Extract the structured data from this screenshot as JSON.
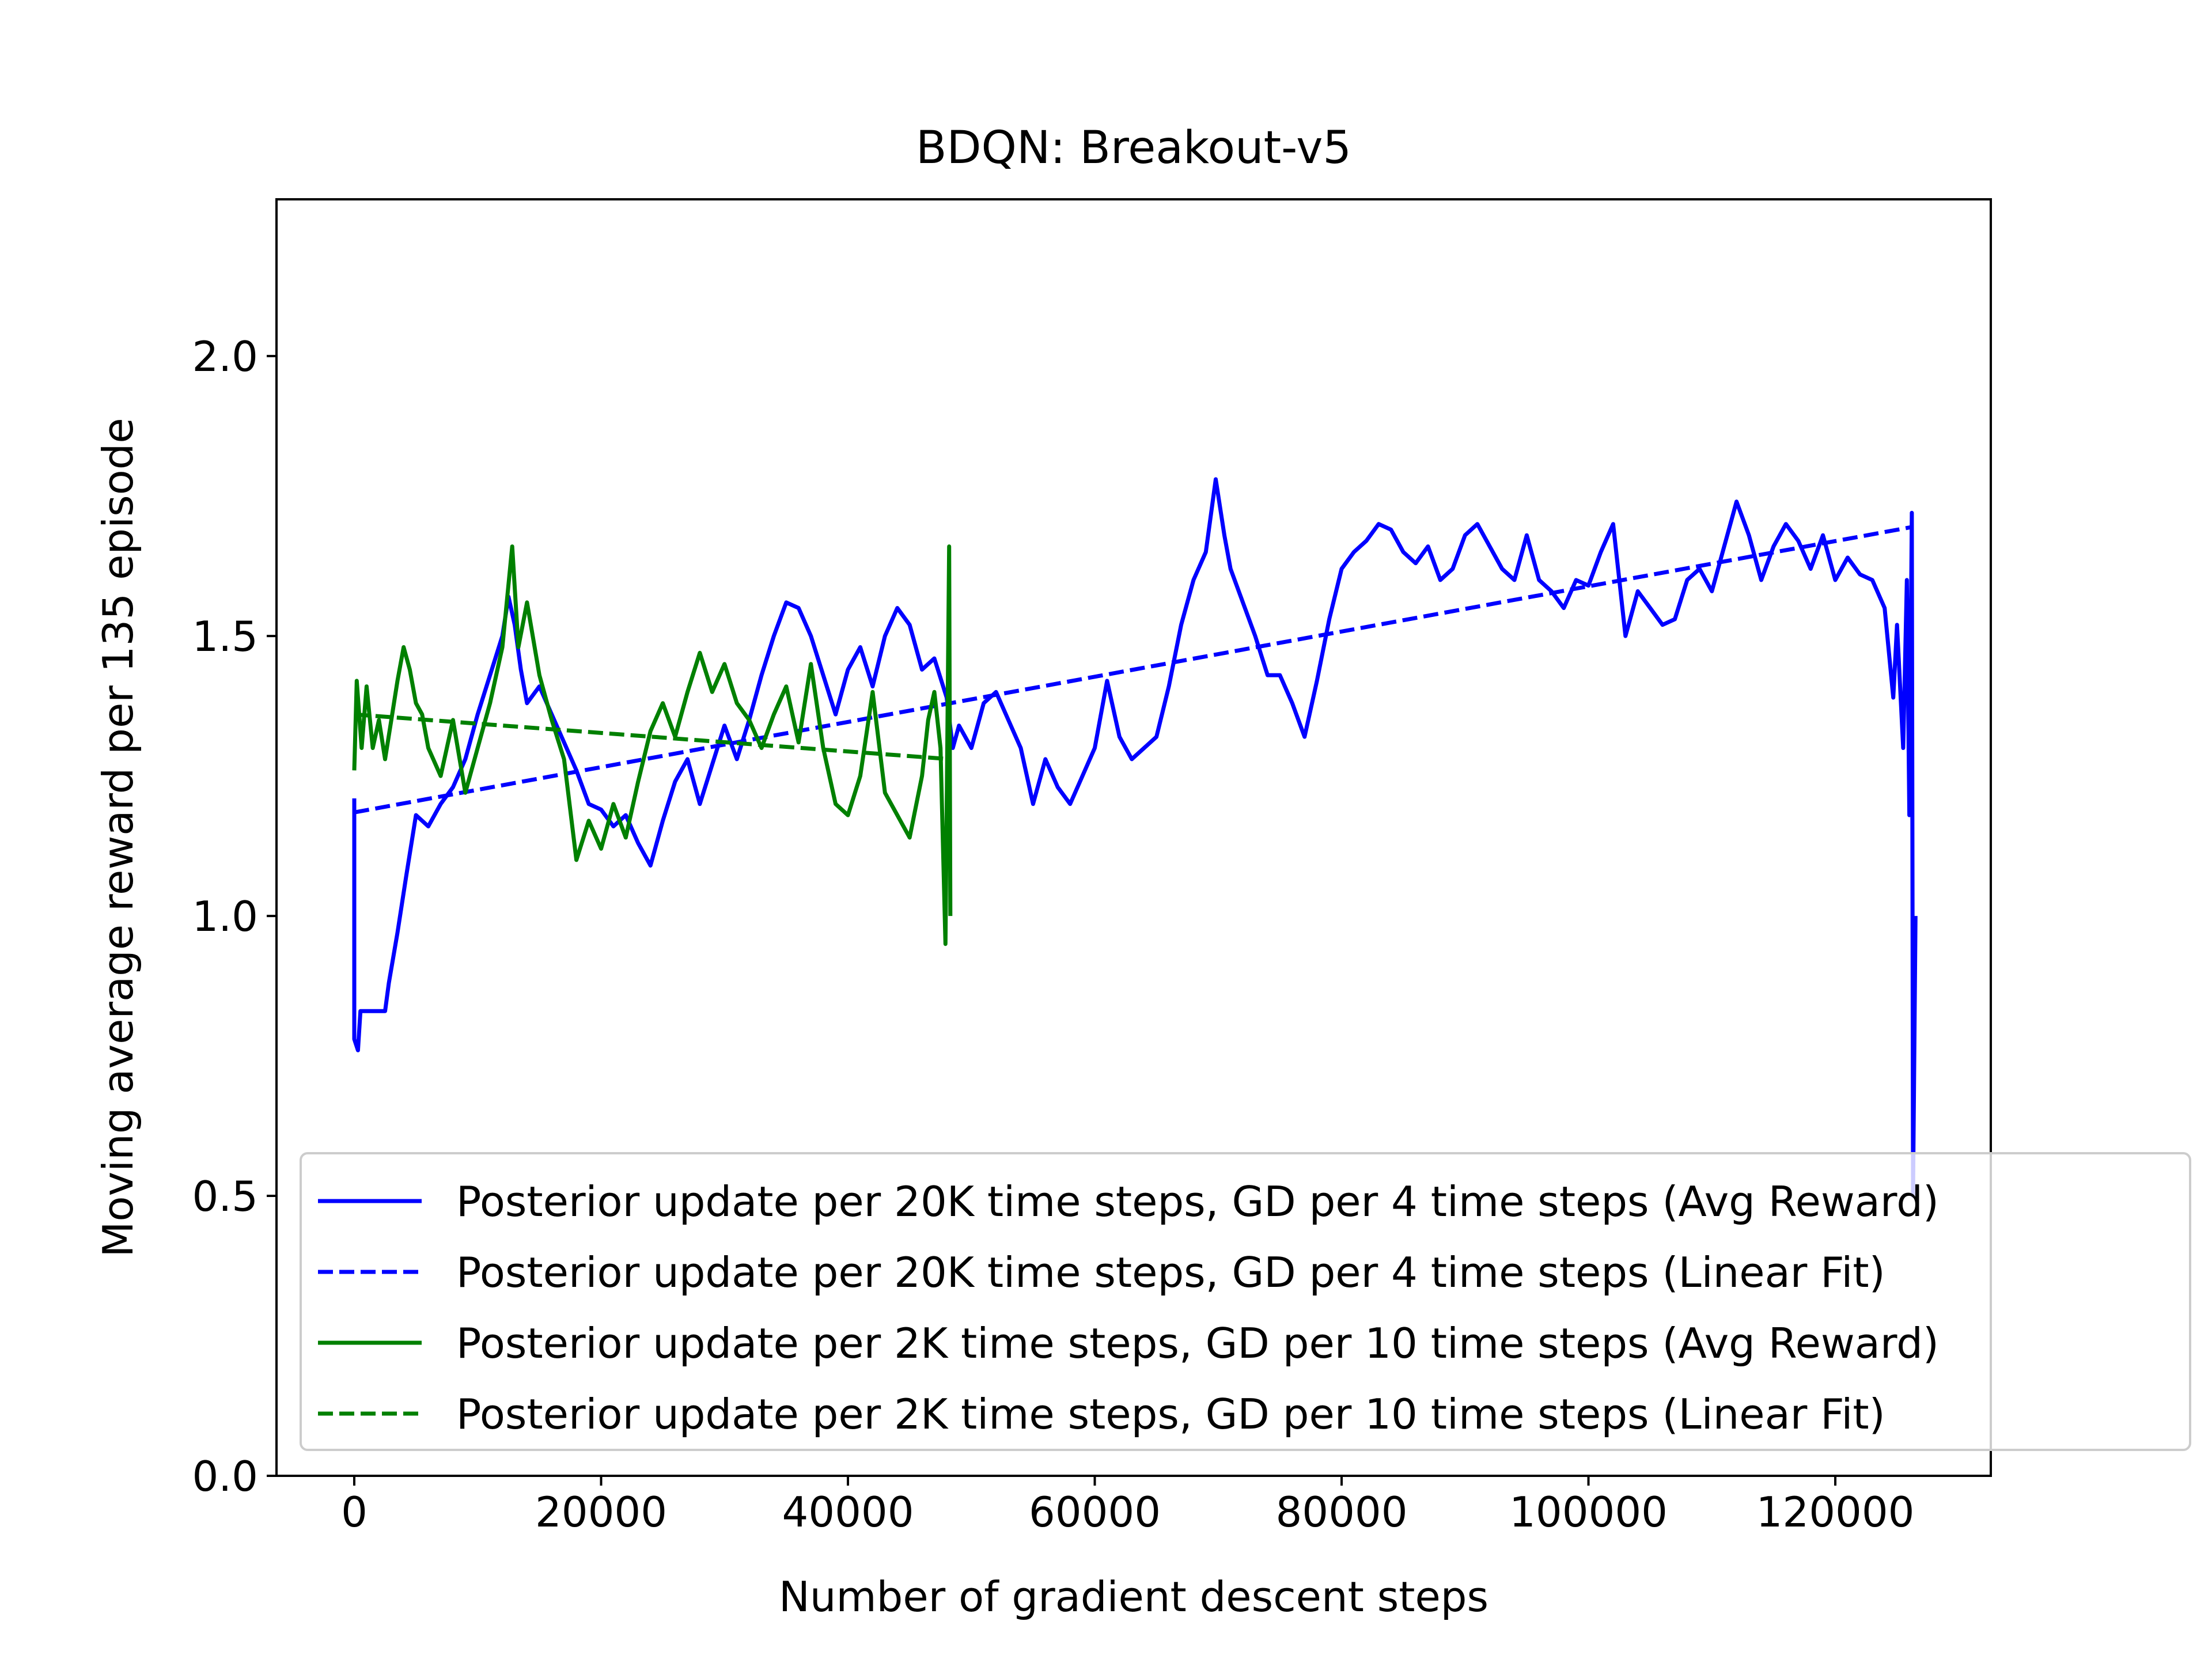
{
  "chart_data": {
    "type": "line",
    "title": "BDQN: Breakout-v5",
    "xlabel": "Number of gradient descent steps",
    "ylabel": "Moving average reward per 135 episode",
    "xlim": [
      -6300,
      132600
    ],
    "ylim": [
      0.0,
      2.28
    ],
    "xticks": [
      0,
      20000,
      40000,
      60000,
      80000,
      100000,
      120000
    ],
    "yticks": [
      0.0,
      0.5,
      1.0,
      1.5,
      2.0
    ],
    "ytick_labels": [
      "0.0",
      "0.5",
      "1.0",
      "1.5",
      "2.0"
    ],
    "grid": false,
    "legend_position": "lower-right",
    "series": [
      {
        "name": "Posterior update per 20K time steps, GD per 4 time steps (Avg Reward)",
        "color": "#0000ff",
        "style": "solid",
        "points": [
          [
            0,
            1.21
          ],
          [
            0,
            0.78
          ],
          [
            300,
            0.76
          ],
          [
            500,
            0.83
          ],
          [
            1500,
            0.83
          ],
          [
            2500,
            0.83
          ],
          [
            2800,
            0.88
          ],
          [
            3500,
            0.97
          ],
          [
            4200,
            1.07
          ],
          [
            5000,
            1.18
          ],
          [
            6000,
            1.16
          ],
          [
            7000,
            1.2
          ],
          [
            8000,
            1.23
          ],
          [
            9000,
            1.28
          ],
          [
            10000,
            1.36
          ],
          [
            11000,
            1.43
          ],
          [
            12000,
            1.5
          ],
          [
            12500,
            1.57
          ],
          [
            13000,
            1.52
          ],
          [
            13500,
            1.44
          ],
          [
            14000,
            1.38
          ],
          [
            15000,
            1.41
          ],
          [
            16000,
            1.36
          ],
          [
            17000,
            1.31
          ],
          [
            18000,
            1.26
          ],
          [
            19000,
            1.2
          ],
          [
            20000,
            1.19
          ],
          [
            21000,
            1.16
          ],
          [
            22000,
            1.18
          ],
          [
            23000,
            1.13
          ],
          [
            24000,
            1.09
          ],
          [
            25000,
            1.17
          ],
          [
            26000,
            1.24
          ],
          [
            27000,
            1.28
          ],
          [
            28000,
            1.2
          ],
          [
            29000,
            1.27
          ],
          [
            30000,
            1.34
          ],
          [
            31000,
            1.28
          ],
          [
            32000,
            1.35
          ],
          [
            33000,
            1.43
          ],
          [
            34000,
            1.5
          ],
          [
            35000,
            1.56
          ],
          [
            36000,
            1.55
          ],
          [
            37000,
            1.5
          ],
          [
            38000,
            1.43
          ],
          [
            39000,
            1.36
          ],
          [
            40000,
            1.44
          ],
          [
            41000,
            1.48
          ],
          [
            42000,
            1.41
          ],
          [
            43000,
            1.5
          ],
          [
            44000,
            1.55
          ],
          [
            45000,
            1.52
          ],
          [
            46000,
            1.44
          ],
          [
            47000,
            1.46
          ],
          [
            48000,
            1.39
          ],
          [
            48500,
            1.3
          ],
          [
            49000,
            1.34
          ],
          [
            50000,
            1.3
          ],
          [
            51000,
            1.38
          ],
          [
            52000,
            1.4
          ],
          [
            53000,
            1.35
          ],
          [
            54000,
            1.3
          ],
          [
            55000,
            1.2
          ],
          [
            56000,
            1.28
          ],
          [
            57000,
            1.23
          ],
          [
            58000,
            1.2
          ],
          [
            59000,
            1.25
          ],
          [
            60000,
            1.3
          ],
          [
            61000,
            1.42
          ],
          [
            62000,
            1.32
          ],
          [
            63000,
            1.28
          ],
          [
            64000,
            1.3
          ],
          [
            65000,
            1.32
          ],
          [
            66000,
            1.41
          ],
          [
            67000,
            1.52
          ],
          [
            68000,
            1.6
          ],
          [
            69000,
            1.65
          ],
          [
            69800,
            1.78
          ],
          [
            70500,
            1.68
          ],
          [
            71000,
            1.62
          ],
          [
            72000,
            1.56
          ],
          [
            73000,
            1.5
          ],
          [
            74000,
            1.43
          ],
          [
            75000,
            1.43
          ],
          [
            76000,
            1.38
          ],
          [
            77000,
            1.32
          ],
          [
            78000,
            1.42
          ],
          [
            79000,
            1.53
          ],
          [
            80000,
            1.62
          ],
          [
            81000,
            1.65
          ],
          [
            82000,
            1.67
          ],
          [
            83000,
            1.7
          ],
          [
            84000,
            1.69
          ],
          [
            85000,
            1.65
          ],
          [
            86000,
            1.63
          ],
          [
            87000,
            1.66
          ],
          [
            88000,
            1.6
          ],
          [
            89000,
            1.62
          ],
          [
            90000,
            1.68
          ],
          [
            91000,
            1.7
          ],
          [
            92000,
            1.66
          ],
          [
            93000,
            1.62
          ],
          [
            94000,
            1.6
          ],
          [
            95000,
            1.68
          ],
          [
            96000,
            1.6
          ],
          [
            97000,
            1.58
          ],
          [
            98000,
            1.55
          ],
          [
            99000,
            1.6
          ],
          [
            100000,
            1.59
          ],
          [
            101000,
            1.65
          ],
          [
            102000,
            1.7
          ],
          [
            103000,
            1.5
          ],
          [
            104000,
            1.58
          ],
          [
            105000,
            1.55
          ],
          [
            106000,
            1.52
          ],
          [
            107000,
            1.53
          ],
          [
            108000,
            1.6
          ],
          [
            109000,
            1.62
          ],
          [
            110000,
            1.58
          ],
          [
            111000,
            1.66
          ],
          [
            112000,
            1.74
          ],
          [
            113000,
            1.68
          ],
          [
            114000,
            1.6
          ],
          [
            115000,
            1.66
          ],
          [
            116000,
            1.7
          ],
          [
            117000,
            1.67
          ],
          [
            118000,
            1.62
          ],
          [
            119000,
            1.68
          ],
          [
            120000,
            1.6
          ],
          [
            121000,
            1.64
          ],
          [
            122000,
            1.61
          ],
          [
            123000,
            1.6
          ],
          [
            124000,
            1.55
          ],
          [
            124700,
            1.39
          ],
          [
            125000,
            1.52
          ],
          [
            125500,
            1.3
          ],
          [
            125800,
            1.6
          ],
          [
            126000,
            1.18
          ],
          [
            126200,
            1.72
          ],
          [
            126300,
            0.5
          ],
          [
            126500,
            1.0
          ]
        ]
      },
      {
        "name": "Posterior update per 20K time steps, GD per 4 time steps (Linear Fit)",
        "color": "#0000ff",
        "style": "dashed",
        "points": [
          [
            0,
            1.185
          ],
          [
            126300,
            1.695
          ]
        ]
      },
      {
        "name": "Posterior update per 2K time steps, GD per 10 time steps (Avg Reward)",
        "color": "#008000",
        "style": "solid",
        "points": [
          [
            0,
            1.26
          ],
          [
            200,
            1.42
          ],
          [
            600,
            1.3
          ],
          [
            1000,
            1.41
          ],
          [
            1500,
            1.3
          ],
          [
            2000,
            1.35
          ],
          [
            2500,
            1.28
          ],
          [
            3000,
            1.35
          ],
          [
            3500,
            1.42
          ],
          [
            4000,
            1.48
          ],
          [
            4500,
            1.44
          ],
          [
            5000,
            1.38
          ],
          [
            5500,
            1.36
          ],
          [
            6000,
            1.3
          ],
          [
            7000,
            1.25
          ],
          [
            8000,
            1.35
          ],
          [
            9000,
            1.22
          ],
          [
            10000,
            1.3
          ],
          [
            11000,
            1.38
          ],
          [
            12000,
            1.48
          ],
          [
            12800,
            1.66
          ],
          [
            13300,
            1.48
          ],
          [
            14000,
            1.56
          ],
          [
            15000,
            1.43
          ],
          [
            16000,
            1.35
          ],
          [
            17000,
            1.28
          ],
          [
            18000,
            1.1
          ],
          [
            19000,
            1.17
          ],
          [
            20000,
            1.12
          ],
          [
            21000,
            1.2
          ],
          [
            22000,
            1.14
          ],
          [
            23000,
            1.24
          ],
          [
            24000,
            1.33
          ],
          [
            25000,
            1.38
          ],
          [
            26000,
            1.32
          ],
          [
            27000,
            1.4
          ],
          [
            28000,
            1.47
          ],
          [
            29000,
            1.4
          ],
          [
            30000,
            1.45
          ],
          [
            31000,
            1.38
          ],
          [
            32000,
            1.35
          ],
          [
            33000,
            1.3
          ],
          [
            34000,
            1.36
          ],
          [
            35000,
            1.41
          ],
          [
            36000,
            1.31
          ],
          [
            37000,
            1.45
          ],
          [
            38000,
            1.3
          ],
          [
            39000,
            1.2
          ],
          [
            40000,
            1.18
          ],
          [
            41000,
            1.25
          ],
          [
            42000,
            1.4
          ],
          [
            43000,
            1.22
          ],
          [
            44000,
            1.18
          ],
          [
            45000,
            1.14
          ],
          [
            46000,
            1.25
          ],
          [
            46500,
            1.35
          ],
          [
            47000,
            1.4
          ],
          [
            47500,
            1.3
          ],
          [
            47900,
            0.95
          ],
          [
            48200,
            1.66
          ],
          [
            48300,
            1.0
          ]
        ]
      },
      {
        "name": "Posterior update per 2K time steps, GD per 10 time steps (Linear Fit)",
        "color": "#008000",
        "style": "dashed",
        "points": [
          [
            0,
            1.36
          ],
          [
            48300,
            1.28
          ]
        ]
      }
    ]
  }
}
